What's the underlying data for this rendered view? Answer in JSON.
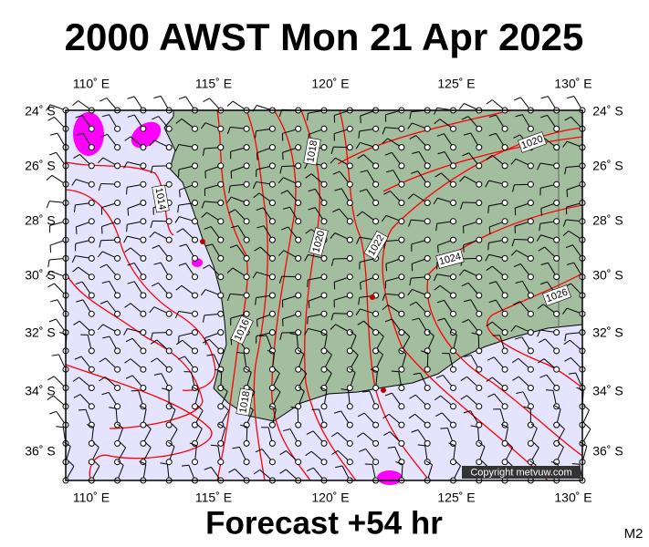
{
  "title": "2000 AWST Mon 21 Apr 2025",
  "footer": "Forecast +54 hr",
  "code": "M2",
  "copyright": "Copyright metvuw.com",
  "x_axis": {
    "labels": [
      "110˚ E",
      "115˚ E",
      "120˚ E",
      "125˚ E",
      "130˚ E"
    ]
  },
  "y_axis": {
    "labels": [
      "24˚ S",
      "26˚ S",
      "28˚ S",
      "30˚ S",
      "32˚ S",
      "34˚ S",
      "36˚ S"
    ]
  },
  "isobar_labels": [
    1014,
    1016,
    1018,
    1018,
    1020,
    1022,
    1024,
    1026,
    1020
  ]
}
